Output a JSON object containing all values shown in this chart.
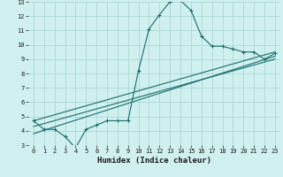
{
  "xlabel": "Humidex (Indice chaleur)",
  "background_color": "#cff0ee",
  "grid_color": "#aad8d5",
  "line_color": "#1a6b6b",
  "xlim": [
    -0.5,
    23.5
  ],
  "ylim": [
    3,
    13
  ],
  "xticks": [
    0,
    1,
    2,
    3,
    4,
    5,
    6,
    7,
    8,
    9,
    10,
    11,
    12,
    13,
    14,
    15,
    16,
    17,
    18,
    19,
    20,
    21,
    22,
    23
  ],
  "yticks": [
    3,
    4,
    5,
    6,
    7,
    8,
    9,
    10,
    11,
    12,
    13
  ],
  "series1_x": [
    0,
    1,
    2,
    3,
    4,
    5,
    6,
    7,
    8,
    9,
    10,
    11,
    12,
    13,
    14,
    15,
    16,
    17,
    18,
    19,
    20,
    21,
    22,
    23
  ],
  "series1_y": [
    4.7,
    4.1,
    4.1,
    3.6,
    2.8,
    4.1,
    4.4,
    4.7,
    4.7,
    4.7,
    8.2,
    11.1,
    12.1,
    13.0,
    13.1,
    12.4,
    10.6,
    9.9,
    9.9,
    9.7,
    9.5,
    9.5,
    9.0,
    9.4
  ],
  "series2_x": [
    0,
    23
  ],
  "series2_y": [
    4.7,
    9.5
  ],
  "series3_x": [
    0,
    23
  ],
  "series3_y": [
    4.3,
    9.0
  ],
  "series4_x": [
    0,
    23
  ],
  "series4_y": [
    3.8,
    9.2
  ]
}
